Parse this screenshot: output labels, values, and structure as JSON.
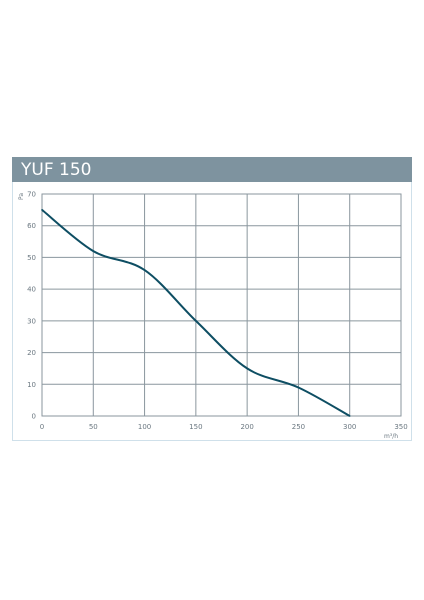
{
  "header": {
    "title": "YUF 150"
  },
  "colors": {
    "title_bar": "#7e939f",
    "curve": "#0e4e63",
    "grid": "#8a969e"
  },
  "chart_data": {
    "type": "line",
    "title": "YUF 150",
    "xlabel": "m³/h",
    "ylabel": "Pa",
    "xlim": [
      0,
      350
    ],
    "ylim": [
      0,
      70
    ],
    "x_ticks": [
      "0",
      "50",
      "100",
      "150",
      "200",
      "250",
      "300",
      "350"
    ],
    "y_ticks": [
      "0",
      "10",
      "20",
      "30",
      "40",
      "50",
      "60",
      "70"
    ],
    "grid": true,
    "legend": "none",
    "series": [
      {
        "x": [
          0,
          50,
          100,
          150,
          200,
          250,
          300
        ],
        "values": [
          65,
          52,
          46,
          30,
          15,
          9,
          0
        ]
      }
    ]
  }
}
